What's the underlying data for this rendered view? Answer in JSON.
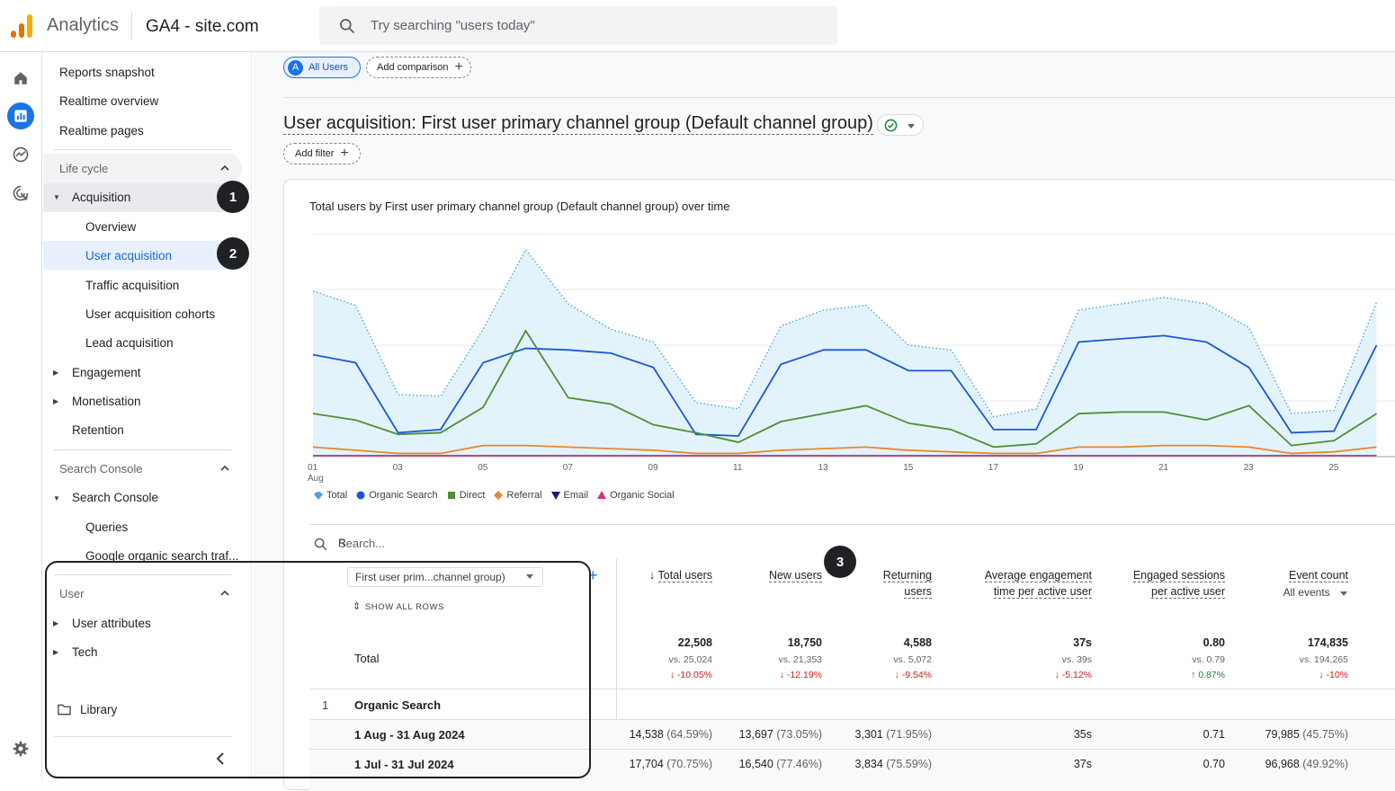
{
  "app": {
    "name": "Analytics",
    "property": "GA4 - site.com",
    "search_placeholder": "Try searching \"users today\""
  },
  "rail": [
    "home-icon",
    "reports-icon",
    "explore-icon",
    "advertising-icon",
    "settings-icon"
  ],
  "sidebar": {
    "top_items": [
      "Reports snapshot",
      "Realtime overview",
      "Realtime pages"
    ],
    "lifecycle": {
      "header": "Life cycle",
      "acquisition": "Acquisition",
      "acq_items": [
        "Overview",
        "User acquisition",
        "Traffic acquisition",
        "User acquisition cohorts",
        "Lead acquisition"
      ],
      "engagement": "Engagement",
      "monetisation": "Monetisation",
      "retention": "Retention"
    },
    "search_console": {
      "header": "Search Console",
      "group": "Search Console",
      "items": [
        "Queries",
        "Google organic search traf..."
      ]
    },
    "user": {
      "header": "User",
      "items": [
        "User attributes",
        "Tech"
      ]
    },
    "library": "Library"
  },
  "badges": [
    "1",
    "2",
    "3"
  ],
  "main": {
    "segment": {
      "avatar": "A",
      "label": "All Users"
    },
    "add_comparison": "Add comparison",
    "title": "User acquisition: First user primary channel group (Default channel group)",
    "add_filter": "Add filter",
    "chart_title": "Total users by First user primary channel group (Default channel group) over time"
  },
  "chart_data": {
    "type": "line",
    "title": "Total users by First user primary channel group (Default channel group) over time",
    "x_ticks": [
      "01",
      "03",
      "05",
      "07",
      "09",
      "11",
      "13",
      "15",
      "17",
      "19",
      "21",
      "23",
      "25"
    ],
    "x_month": "Aug",
    "x": [
      1,
      2,
      3,
      4,
      5,
      6,
      7,
      8,
      9,
      10,
      11,
      12,
      13,
      14,
      15,
      16,
      17,
      18,
      19,
      20,
      21,
      22,
      23,
      24,
      25,
      26
    ],
    "series": [
      {
        "name": "Total",
        "color": "#4fa3d9",
        "values": [
          1040,
          950,
          390,
          380,
          800,
          1300,
          960,
          800,
          720,
          340,
          300,
          820,
          920,
          950,
          700,
          670,
          250,
          300,
          920,
          960,
          1000,
          960,
          810,
          270,
          290,
          970
        ]
      },
      {
        "name": "Organic Search",
        "color": "#1a58d6",
        "values": [
          640,
          590,
          150,
          170,
          590,
          680,
          670,
          650,
          560,
          140,
          130,
          580,
          670,
          670,
          540,
          540,
          170,
          170,
          720,
          740,
          760,
          720,
          560,
          150,
          160,
          700
        ]
      },
      {
        "name": "Direct",
        "color": "#4f8f32",
        "values": [
          270,
          230,
          140,
          150,
          310,
          790,
          370,
          330,
          200,
          150,
          90,
          220,
          270,
          320,
          210,
          170,
          60,
          80,
          270,
          280,
          280,
          230,
          320,
          70,
          100,
          270
        ]
      },
      {
        "name": "Referral",
        "color": "#e8872b",
        "values": [
          60,
          40,
          20,
          20,
          70,
          70,
          60,
          50,
          40,
          20,
          20,
          40,
          50,
          60,
          40,
          30,
          20,
          20,
          60,
          60,
          70,
          70,
          60,
          20,
          30,
          60
        ]
      },
      {
        "name": "Email",
        "color": "#1d1d7a",
        "values": [
          5,
          5,
          5,
          5,
          5,
          5,
          5,
          5,
          5,
          5,
          5,
          5,
          5,
          5,
          5,
          5,
          5,
          5,
          5,
          5,
          5,
          5,
          5,
          5,
          5,
          5
        ]
      },
      {
        "name": "Organic Social",
        "color": "#d6317e",
        "values": [
          2,
          2,
          2,
          2,
          2,
          2,
          2,
          2,
          2,
          2,
          2,
          2,
          2,
          2,
          2,
          2,
          2,
          2,
          2,
          2,
          2,
          2,
          2,
          2,
          2,
          2
        ]
      }
    ],
    "ylim": [
      0,
      1400
    ],
    "grid": true,
    "legend": "bottom-left"
  },
  "table": {
    "search_placeholder": "Search...",
    "right_cut": "R",
    "dimension": "First user prim...channel group)",
    "show_all_rows": "SHOW ALL ROWS",
    "columns": [
      {
        "l1": "Total users",
        "l2": ""
      },
      {
        "l1": "New users",
        "l2": ""
      },
      {
        "l1": "Returning",
        "l2": "users"
      },
      {
        "l1": "Average engagement",
        "l2": "time per active user"
      },
      {
        "l1": "Engaged sessions",
        "l2": "per active user"
      },
      {
        "l1": "Event count",
        "l2": ""
      }
    ],
    "event_sub": "All events",
    "total_label": "Total",
    "totals": [
      "22,508",
      "18,750",
      "4,588",
      "37s",
      "0.80",
      "174,835"
    ],
    "vs": [
      "vs. 25,024",
      "vs. 21,353",
      "vs. 5,072",
      "vs. 39s",
      "vs. 0.79",
      "vs. 194,265"
    ],
    "change": [
      "-10.05%",
      "-12.19%",
      "-9.54%",
      "-5.12%",
      "0.87%",
      "-10%"
    ],
    "row1_index": "1",
    "row1_label": "Organic Search",
    "period1": "1 Aug - 31 Aug 2024",
    "period1_vals": [
      "14,538",
      "13,697",
      "3,301",
      "35s",
      "0.71",
      "79,985"
    ],
    "period1_pct": [
      "(64.59%)",
      "(73.05%)",
      "(71.95%)",
      "",
      "",
      "(45.75%)"
    ],
    "period2": "1 Jul - 31 Jul 2024",
    "period2_vals": [
      "17,704",
      "16,540",
      "3,834",
      "37s",
      "0.70",
      "96,968"
    ],
    "period2_pct": [
      "(70.75%)",
      "(77.46%)",
      "(75.59%)",
      "",
      "",
      "(49.92%)"
    ]
  }
}
